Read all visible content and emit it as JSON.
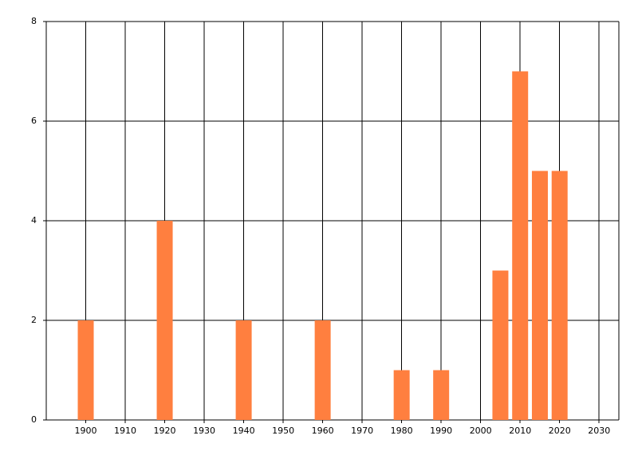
{
  "chart_data": {
    "type": "bar",
    "x": [
      1900,
      1920,
      1940,
      1960,
      1980,
      1990,
      2005,
      2010,
      2015,
      2020
    ],
    "values": [
      2,
      4,
      2,
      2,
      1,
      1,
      3,
      7,
      5,
      5
    ],
    "color": "#ff7f3f",
    "xlim": [
      1890,
      2035
    ],
    "xticks": [
      1900,
      1910,
      1920,
      1930,
      1940,
      1950,
      1960,
      1970,
      1980,
      1990,
      2000,
      2010,
      2020,
      2030
    ],
    "ylim": [
      0,
      8
    ],
    "yticks": [
      0,
      2,
      4,
      6,
      8
    ],
    "grid": true
  }
}
